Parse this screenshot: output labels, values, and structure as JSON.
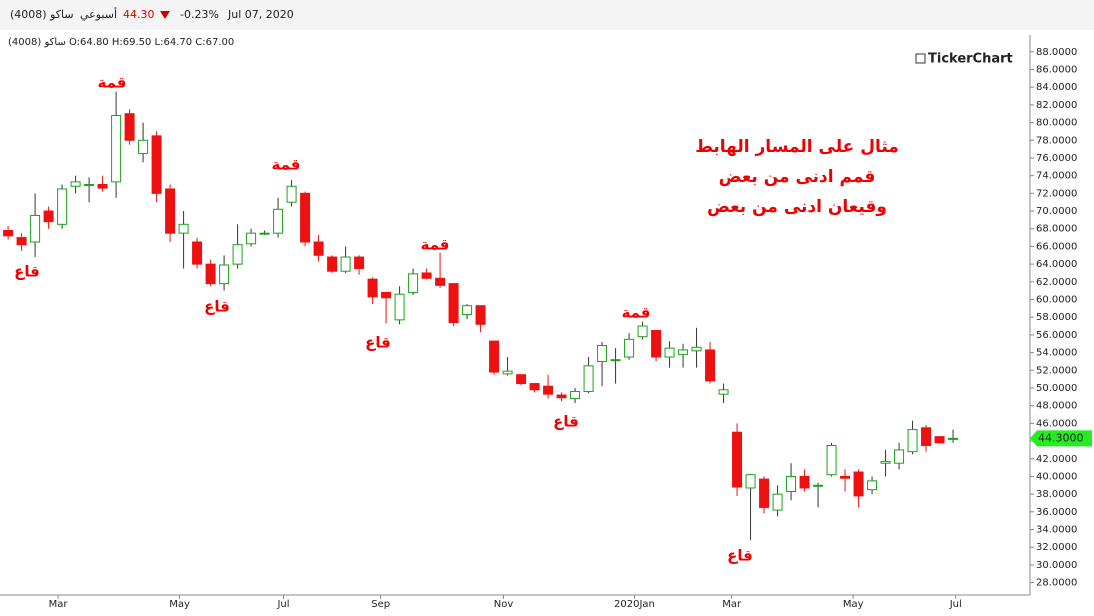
{
  "header": {
    "symbol": "ساكو (4008)",
    "period": "أسبوعي",
    "price": "44.30",
    "change": "-0.23%",
    "date": "Jul 07, 2020",
    "ohlc_line": "ساكو (4008)  O:64.80  H:69.50  L:64.70  C:67.00",
    "brand": "TickerChart"
  },
  "chart_data": {
    "type": "candlestick",
    "open": [
      67.8,
      67.0,
      66.5,
      70.0,
      68.5,
      72.8,
      73.0,
      73.0,
      73.3,
      81.0,
      76.5,
      78.5,
      72.5,
      67.5,
      66.5,
      64.0,
      61.8,
      64.0,
      66.3,
      67.5,
      67.5,
      71.0,
      72.0,
      66.5,
      64.8,
      63.2,
      64.8,
      62.3,
      60.8,
      57.7,
      60.8,
      63.0,
      62.4,
      61.8,
      58.3,
      59.3,
      55.3,
      51.6,
      51.5,
      50.5,
      50.2,
      49.2,
      48.8,
      49.6,
      53.0,
      53.2,
      53.5,
      55.8,
      56.5,
      53.5,
      53.8,
      54.2,
      54.3,
      49.3,
      45.0,
      38.7,
      39.7,
      36.2,
      38.3,
      40.0,
      39.0,
      40.2,
      40.0,
      40.5,
      38.5,
      41.5,
      41.5,
      42.8,
      45.5,
      44.5,
      44.3
    ],
    "high": [
      68.3,
      67.5,
      72.0,
      70.5,
      73.0,
      74.0,
      73.8,
      74.0,
      83.5,
      81.5,
      80.0,
      79.0,
      73.0,
      70.0,
      67.0,
      64.5,
      65.0,
      68.5,
      68.0,
      67.8,
      71.5,
      73.5,
      72.2,
      67.3,
      65.0,
      66.0,
      65.0,
      62.5,
      60.8,
      61.5,
      63.5,
      63.5,
      65.3,
      61.8,
      59.5,
      59.3,
      55.3,
      53.5,
      51.5,
      50.5,
      51.5,
      49.5,
      50.0,
      53.5,
      55.2,
      54.5,
      56.2,
      57.5,
      56.5,
      55.3,
      55.0,
      56.8,
      55.2,
      50.5,
      46.0,
      40.3,
      40.0,
      39.0,
      41.5,
      40.8,
      39.3,
      43.8,
      40.8,
      40.8,
      40.0,
      43.0,
      43.8,
      46.3,
      45.8,
      44.5,
      45.3
    ],
    "low": [
      66.8,
      65.5,
      64.8,
      68.0,
      68.0,
      72.0,
      71.0,
      72.2,
      71.5,
      77.5,
      75.5,
      71.0,
      66.5,
      63.5,
      63.5,
      61.5,
      61.0,
      63.5,
      66.0,
      67.3,
      67.0,
      70.5,
      66.0,
      64.3,
      63.0,
      63.0,
      62.8,
      59.5,
      57.3,
      57.2,
      60.5,
      62.3,
      61.3,
      57.0,
      57.8,
      56.3,
      51.5,
      51.4,
      50.3,
      49.5,
      48.8,
      48.5,
      48.3,
      49.4,
      50.2,
      50.5,
      53.2,
      55.5,
      53.0,
      52.3,
      52.3,
      52.3,
      50.5,
      48.3,
      37.8,
      32.8,
      35.8,
      35.5,
      37.3,
      38.3,
      36.5,
      40.0,
      38.3,
      36.5,
      38.0,
      40.0,
      40.8,
      42.5,
      42.8,
      43.7,
      43.8
    ],
    "close": [
      67.2,
      66.2,
      69.5,
      68.8,
      72.5,
      73.3,
      73.0,
      72.6,
      80.8,
      78.0,
      78.0,
      72.0,
      67.5,
      68.5,
      64.0,
      61.8,
      63.9,
      66.2,
      67.5,
      67.5,
      70.2,
      72.8,
      66.5,
      65.0,
      63.2,
      64.8,
      63.5,
      60.3,
      60.2,
      60.6,
      62.9,
      62.4,
      61.6,
      57.4,
      59.3,
      57.2,
      51.8,
      51.9,
      50.5,
      49.8,
      49.3,
      48.9,
      49.6,
      52.5,
      54.8,
      53.2,
      55.5,
      57.0,
      53.5,
      54.5,
      54.3,
      54.6,
      50.8,
      49.8,
      38.8,
      40.2,
      36.5,
      38.0,
      40.0,
      38.7,
      39.0,
      43.5,
      39.8,
      37.8,
      39.5,
      41.7,
      43.0,
      45.3,
      43.5,
      43.8,
      44.3
    ],
    "up_color": "#1aa31a",
    "down_color": "#ee1111",
    "xlim": [
      -0.6,
      75.7
    ],
    "xticks": [
      {
        "value": 3.7,
        "label": "Mar"
      },
      {
        "value": 12.7,
        "label": "May"
      },
      {
        "value": 20.4,
        "label": "Jul"
      },
      {
        "value": 27.6,
        "label": "Sep"
      },
      {
        "value": 36.7,
        "label": "Nov"
      },
      {
        "value": 46.4,
        "label": "2020Jan"
      },
      {
        "value": 53.6,
        "label": "Mar"
      },
      {
        "value": 62.6,
        "label": "May"
      },
      {
        "value": 70.2,
        "label": "Jul"
      }
    ],
    "ylim": [
      26.6,
      89.9
    ],
    "yticks": [
      {
        "value": 28,
        "label": "28.0000"
      },
      {
        "value": 30,
        "label": "30.0000"
      },
      {
        "value": 32,
        "label": "32.0000"
      },
      {
        "value": 34,
        "label": "34.0000"
      },
      {
        "value": 36,
        "label": "36.0000"
      },
      {
        "value": 38,
        "label": "38.0000"
      },
      {
        "value": 40,
        "label": "40.0000"
      },
      {
        "value": 42,
        "label": "42.0000"
      },
      {
        "value": 44,
        "label": "44.0000"
      },
      {
        "value": 46,
        "label": "46.0000"
      },
      {
        "value": 48,
        "label": "48.0000"
      },
      {
        "value": 50,
        "label": "50.0000"
      },
      {
        "value": 52,
        "label": "52.0000"
      },
      {
        "value": 54,
        "label": "54.0000"
      },
      {
        "value": 56,
        "label": "56.0000"
      },
      {
        "value": 58,
        "label": "58.0000"
      },
      {
        "value": 60,
        "label": "60.0000"
      },
      {
        "value": 62,
        "label": "62.0000"
      },
      {
        "value": 64,
        "label": "64.0000"
      },
      {
        "value": 66,
        "label": "66.0000"
      },
      {
        "value": 68,
        "label": "68.0000"
      },
      {
        "value": 70,
        "label": "70.0000"
      },
      {
        "value": 72,
        "label": "72.0000"
      },
      {
        "value": 74,
        "label": "74.0000"
      },
      {
        "value": 76,
        "label": "76.0000"
      },
      {
        "value": 78,
        "label": "78.0000"
      },
      {
        "value": 80,
        "label": "80.0000"
      },
      {
        "value": 82,
        "label": "82.0000"
      },
      {
        "value": 84,
        "label": "84.0000"
      },
      {
        "value": 86,
        "label": "86.0000"
      },
      {
        "value": 88,
        "label": "88.0000"
      }
    ],
    "last_price": {
      "value": 44.3,
      "label": "44.3000"
    },
    "annotations": [
      "قاع",
      "قمة",
      "قمة",
      "قاع",
      "قمة",
      "قاع",
      "قمة",
      "قاع",
      "قاع"
    ],
    "note": [
      "مثال على المسار الهابط",
      "قمم ادنى من بعض",
      "وقيعان ادنى من بعض"
    ]
  }
}
